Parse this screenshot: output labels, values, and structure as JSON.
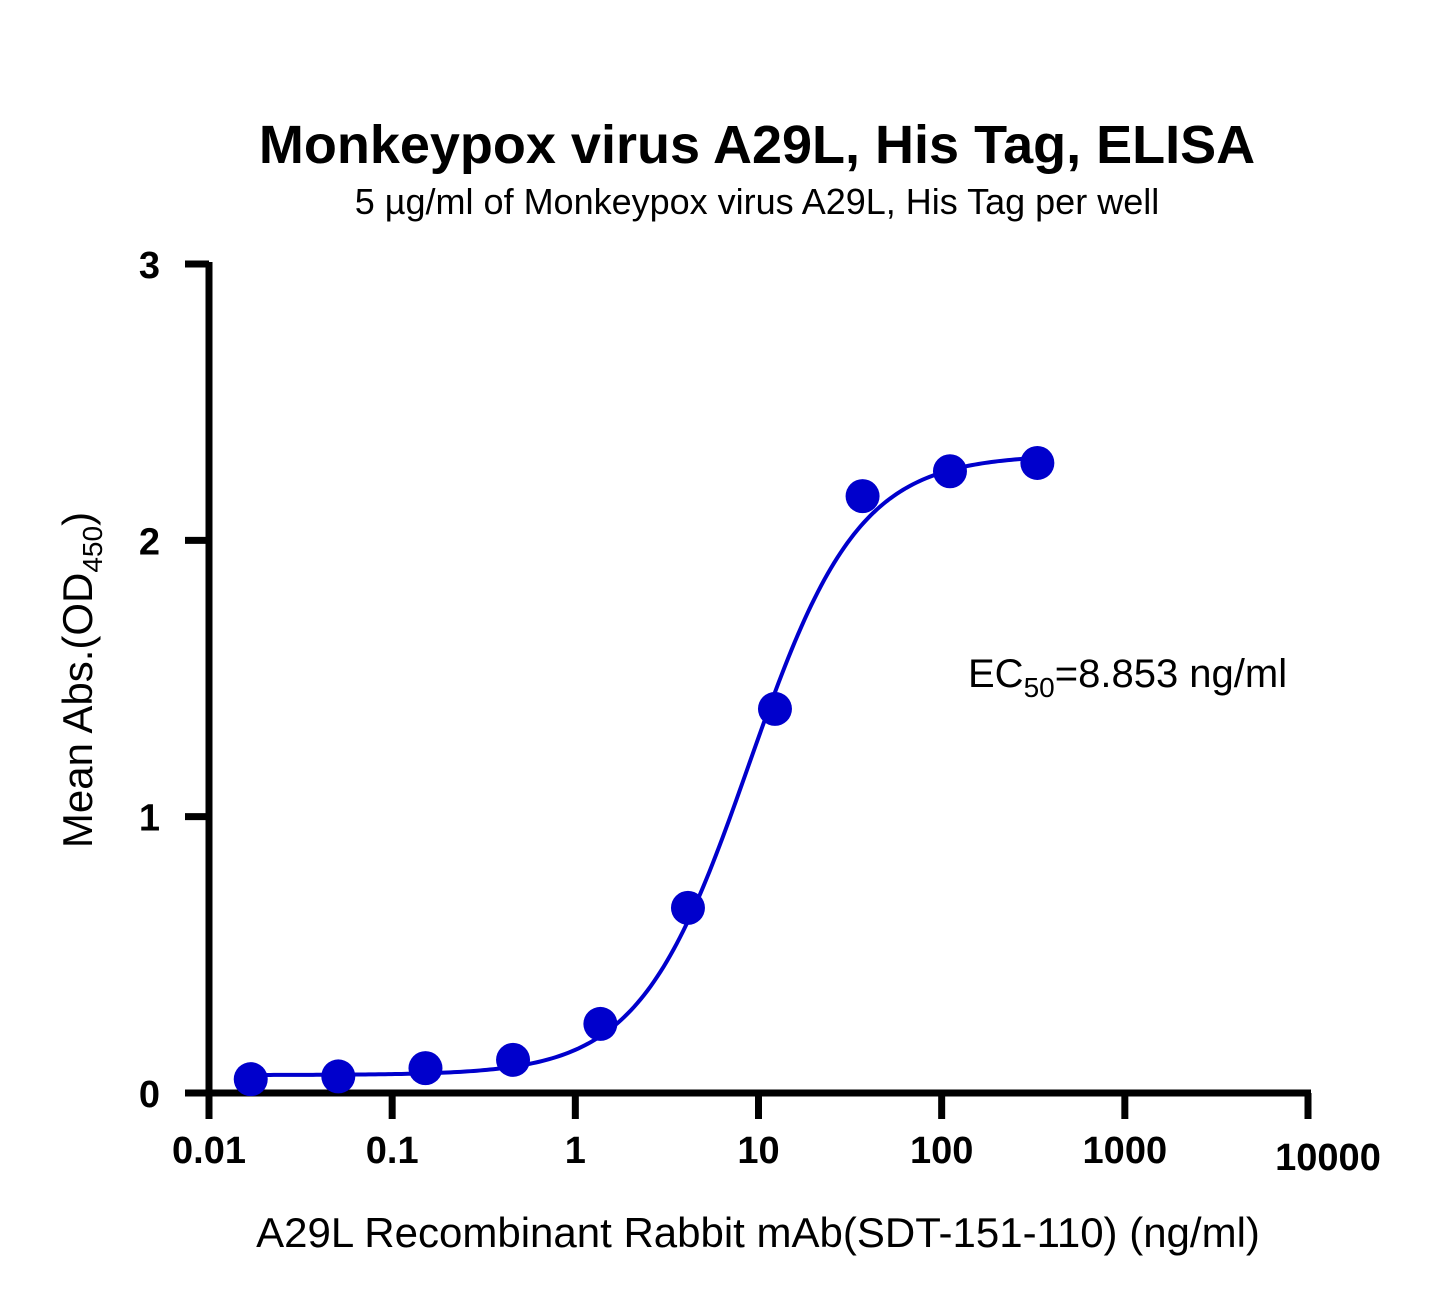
{
  "chart_data": {
    "type": "scatter",
    "title": "Monkeypox virus A29L, His Tag, ELISA",
    "subtitle": "5 µg/ml of Monkeypox virus A29L, His Tag per well",
    "xlabel": "A29L Recombinant Rabbit mAb(SDT-151-110) (ng/ml)",
    "ylabel_main": "Mean Abs.(OD",
    "ylabel_sub": "450",
    "ylabel_end": ")",
    "xscale": "log",
    "xlim": [
      0.01,
      10000
    ],
    "ylim": [
      0,
      3
    ],
    "x_tick_labels": [
      "0.01",
      "0.1",
      "1",
      "10",
      "100",
      "1000",
      "10000"
    ],
    "x_tick_values": [
      0.01,
      0.1,
      1,
      10,
      100,
      1000,
      10000
    ],
    "y_tick_labels": [
      "0",
      "1",
      "2",
      "3"
    ],
    "y_tick_values": [
      0,
      1,
      2,
      3
    ],
    "grid": false,
    "series": [
      {
        "color": "#0000cc",
        "points": [
          {
            "x": 0.0169,
            "y": 0.05
          },
          {
            "x": 0.0508,
            "y": 0.06
          },
          {
            "x": 0.152,
            "y": 0.09
          },
          {
            "x": 0.457,
            "y": 0.12
          },
          {
            "x": 1.37,
            "y": 0.25
          },
          {
            "x": 4.12,
            "y": 0.67
          },
          {
            "x": 12.3,
            "y": 1.39
          },
          {
            "x": 37.0,
            "y": 2.16
          },
          {
            "x": 111,
            "y": 2.25
          },
          {
            "x": 333,
            "y": 2.28
          }
        ],
        "fit": {
          "type": "4PL",
          "bottom": 0.065,
          "top": 2.31,
          "ec50": 8.853,
          "hill": 1.45
        }
      }
    ],
    "annotation": {
      "prefix": "EC",
      "sub": "50",
      "suffix": "=8.853 ng/ml"
    }
  }
}
